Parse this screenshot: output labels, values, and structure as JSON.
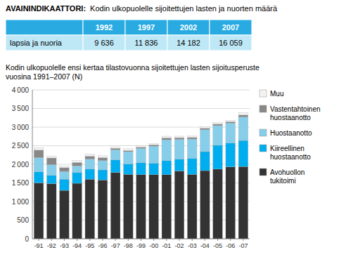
{
  "chart_data": [
    {
      "type": "table",
      "title": "AVAININDIKAATTORI:",
      "subtitle": "Kodin ulkopuolelle sijoitettujen lasten ja nuorten määrä",
      "categories": [
        "1992",
        "1997",
        "2002",
        "2007"
      ],
      "color": "#29ABE2",
      "series": [
        {
          "name": "lapsia ja nuoria",
          "color": "#BFE8F7",
          "values": [
            9636,
            11836,
            14182,
            16059
          ],
          "value_labels": [
            "9 636",
            "11 836",
            "14 182",
            "16 059"
          ]
        }
      ]
    },
    {
      "type": "bar",
      "stacked": true,
      "title": "Kodin ulkopuolelle ensi kertaa tilastovuonna sijoitettujen lasten sijoitusperuste",
      "subtitle": "vuosina 1991–2007 (N)",
      "categories": [
        "-91",
        "-92",
        "-93",
        "-94",
        "-95",
        "-96",
        "-97",
        "-98",
        "-99",
        "-00",
        "-01",
        "-02",
        "-03",
        "-04",
        "-05",
        "-06",
        "-07"
      ],
      "series": [
        {
          "name": "Avohuollon\ntukitoimi",
          "color": "#333333",
          "values": [
            1500,
            1480,
            1300,
            1490,
            1600,
            1580,
            1780,
            1730,
            1720,
            1720,
            1720,
            1820,
            1730,
            1830,
            1870,
            1930,
            1940
          ]
        },
        {
          "name": "Kiireellinen\nhuostaanotto",
          "color": "#00AEEF",
          "values": [
            300,
            220,
            300,
            290,
            270,
            270,
            340,
            280,
            320,
            310,
            380,
            320,
            430,
            510,
            640,
            640,
            700
          ]
        },
        {
          "name": "Huostaanotto",
          "color": "#87CEEB",
          "values": [
            380,
            290,
            210,
            180,
            270,
            250,
            270,
            330,
            390,
            460,
            560,
            530,
            520,
            590,
            530,
            540,
            630
          ]
        },
        {
          "name": "Vastentahtoinen\nhuostaanotto",
          "color": "#888888",
          "values": [
            200,
            180,
            100,
            90,
            80,
            80,
            40,
            30,
            30,
            35,
            50,
            45,
            40,
            40,
            40,
            35,
            55
          ]
        },
        {
          "name": "Muu",
          "color": "#F2F2F2",
          "values": [
            70,
            50,
            40,
            50,
            55,
            55,
            40,
            50,
            40,
            30,
            45,
            40,
            45,
            40,
            40,
            40,
            60
          ]
        }
      ],
      "ylim": [
        0,
        4000
      ],
      "yticks": [
        0,
        500,
        {
          "value": 1000,
          "label": "1 000"
        },
        {
          "value": 1500,
          "label": "1 500"
        },
        {
          "value": 2000,
          "label": "2 000"
        },
        {
          "value": 2500,
          "label": "2 500"
        },
        {
          "value": 3000,
          "label": "3 000"
        },
        {
          "value": 3500,
          "label": "3 500"
        },
        {
          "value": 4000,
          "label": "4 000"
        }
      ],
      "grid": true,
      "legend": "right"
    }
  ]
}
